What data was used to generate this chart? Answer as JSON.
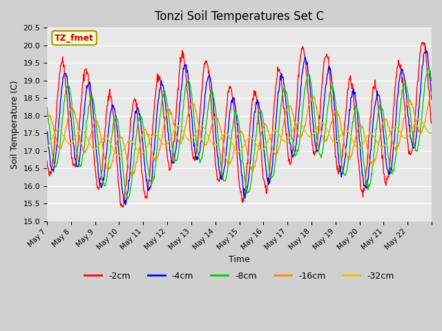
{
  "title": "Tonzi Soil Temperatures Set C",
  "xlabel": "Time",
  "ylabel": "Soil Temperature (C)",
  "ylim": [
    15.0,
    20.5
  ],
  "yticks": [
    15.0,
    15.5,
    16.0,
    16.5,
    17.0,
    17.5,
    18.0,
    18.5,
    19.0,
    19.5,
    20.0,
    20.5
  ],
  "series_colors": [
    "#ff0000",
    "#0000ff",
    "#00cc00",
    "#ff8800",
    "#cccc00"
  ],
  "series_labels": [
    "-2cm",
    "-4cm",
    "-8cm",
    "-16cm",
    "-32cm"
  ],
  "annotation_text": "TZ_fmet",
  "annotation_bg": "#ffffcc",
  "annotation_border": "#999900",
  "annotation_text_color": "#cc0000",
  "fig_bg": "#d0d0d0",
  "plot_bg": "#e8e8e8",
  "x_label_days": [
    7,
    8,
    9,
    10,
    11,
    12,
    13,
    14,
    15,
    16,
    17,
    18,
    19,
    20,
    21,
    22
  ]
}
